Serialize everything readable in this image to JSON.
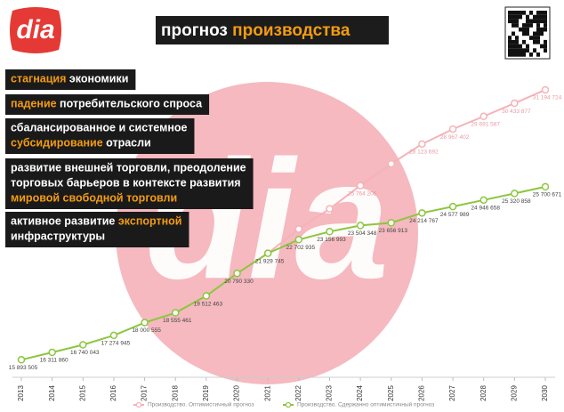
{
  "logo": "dia",
  "watermark": "dia",
  "title": {
    "plain": "прогноз ",
    "accent": "производства"
  },
  "factors": [
    [
      [
        {
          "text": "стагнация",
          "accent": true
        },
        {
          "text": " экономики",
          "accent": false
        }
      ]
    ],
    [
      [
        {
          "text": "падение",
          "accent": true
        },
        {
          "text": " потребительского спроса",
          "accent": false
        }
      ]
    ],
    [
      [
        {
          "text": "сбалансированное и системное",
          "accent": false
        }
      ],
      [
        {
          "text": "субсидирование",
          "accent": true
        },
        {
          "text": " отрасли",
          "accent": false
        }
      ]
    ],
    [
      [
        {
          "text": "развитие внешней торговли, преодоление",
          "accent": false
        }
      ],
      [
        {
          "text": "торговых барьеров в контексте развития",
          "accent": false
        }
      ],
      [
        {
          "text": "мировой свободной торговли",
          "accent": true
        }
      ]
    ],
    [
      [
        {
          "text": "активное развитие ",
          "accent": false
        },
        {
          "text": "экспортной",
          "accent": true
        }
      ],
      [
        {
          "text": "инфраструктуры",
          "accent": false
        }
      ]
    ]
  ],
  "chart_data": {
    "type": "line",
    "categories": [
      "2013",
      "2014",
      "2015",
      "2016",
      "2017",
      "2018",
      "2019",
      "2020",
      "2021",
      "2022",
      "2023",
      "2024",
      "2025",
      "2026",
      "2027",
      "2028",
      "2029",
      "2030"
    ],
    "ylim": [
      15000000,
      32000000
    ],
    "series": [
      {
        "name": "Производство. Оптимистичный прогноз",
        "color": "#f4b3b8",
        "values": [
          null,
          null,
          null,
          null,
          null,
          null,
          null,
          null,
          21929745,
          23300000,
          24450000,
          25764206,
          27000000,
          28123692,
          28967402,
          29691587,
          30433877,
          31194724
        ],
        "value_labels": [
          null,
          null,
          null,
          null,
          null,
          null,
          null,
          null,
          null,
          null,
          null,
          "25 764 206",
          null,
          "28 123 692",
          "28 967 402",
          "29 691 587",
          "30 433 877",
          "31 194 724"
        ]
      },
      {
        "name": "Производство. Сдержанно оптимистичный прогноз",
        "color": "#8cc63f",
        "values": [
          15893505,
          16311860,
          16740043,
          17274945,
          18000555,
          18555461,
          19512463,
          20790330,
          21929745,
          22702935,
          23156993,
          23504348,
          23656913,
          24214767,
          24577989,
          24946658,
          25320858,
          25700671
        ],
        "value_labels": [
          "15 893 505",
          "16 311 860",
          "16 740 043",
          "17 274 945",
          "18 000 555",
          "18 555 461",
          "19 512 463",
          "20 790 330",
          "21 929 745",
          "22 702 935",
          "23 156 993",
          "23 504 348",
          "23 656 913",
          "24 214 767",
          "24 577 989",
          "24 946 658",
          "25 320 858",
          "25 700 671"
        ]
      }
    ]
  }
}
